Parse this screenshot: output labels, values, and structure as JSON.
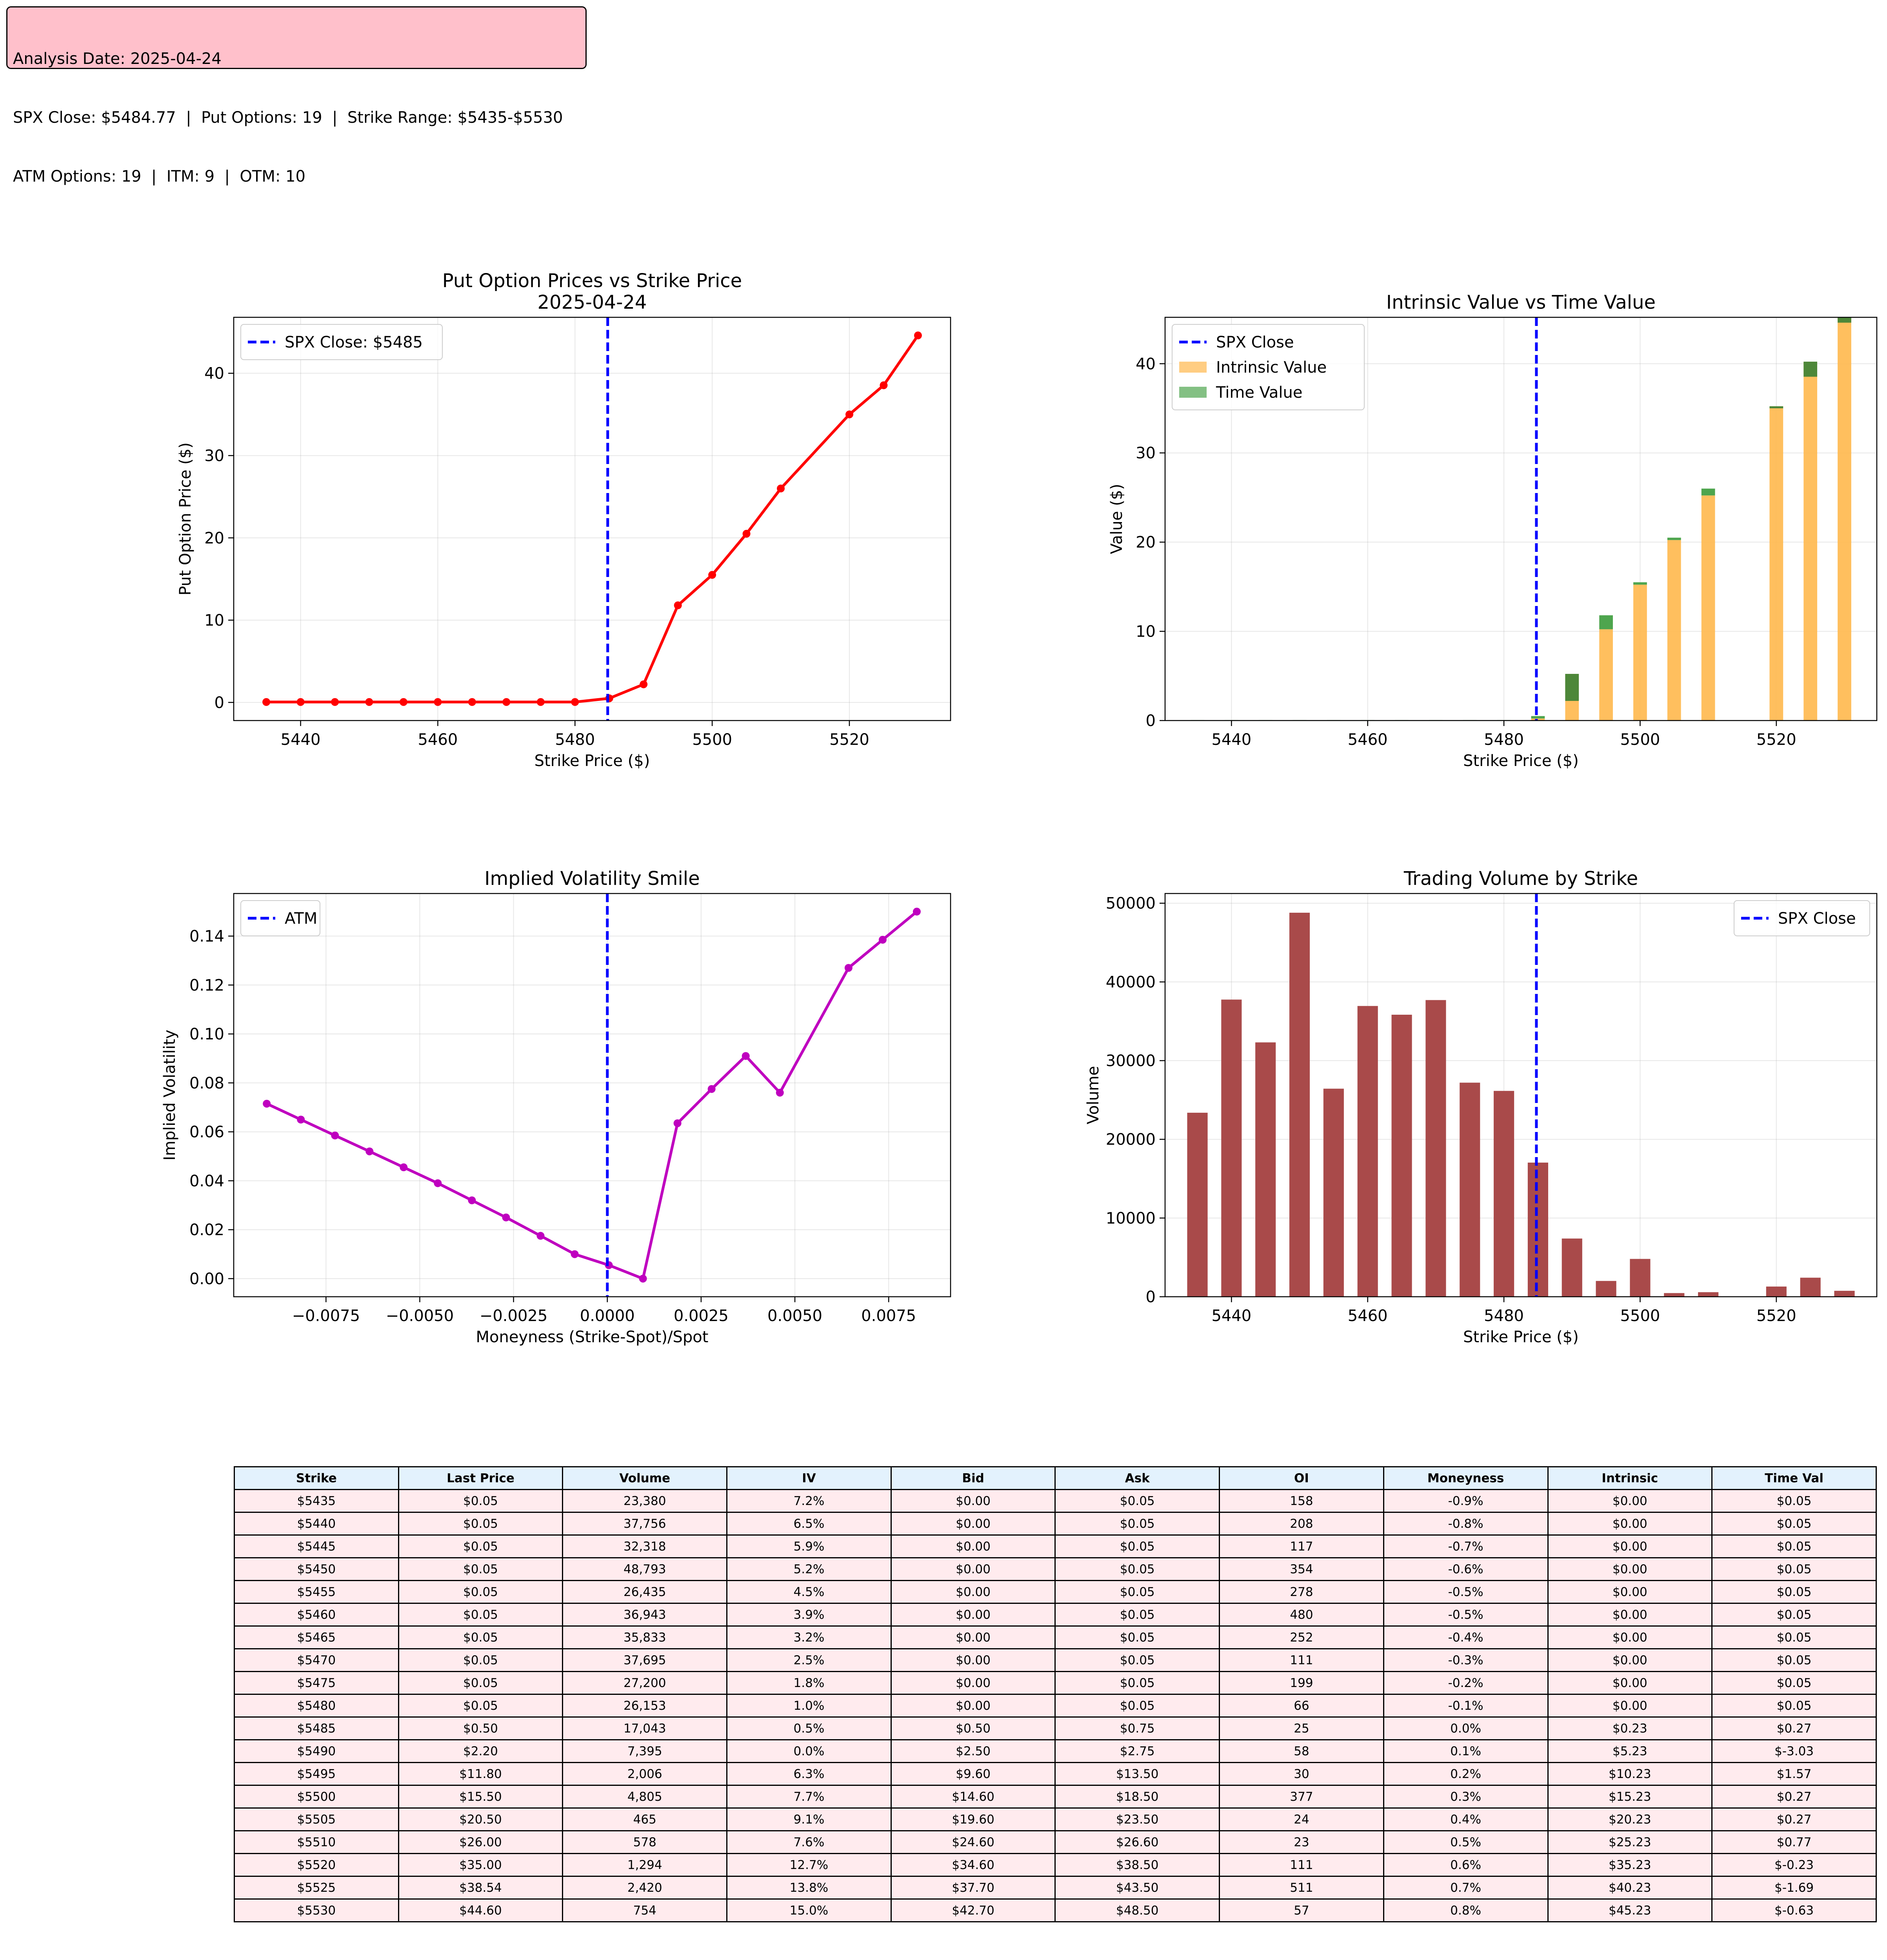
{
  "info": {
    "line1": "Analysis Date: 2025-04-24",
    "line2": "SPX Close: $5484.77  |  Put Options: 19  |  Strike Range: $5435-$5530",
    "line3": "ATM Options: 19  |  ITM: 9  |  OTM: 10"
  },
  "colors": {
    "put_line": "#ff0000",
    "iv_line": "#bf00bf",
    "spot_line": "#0000ff",
    "intrinsic": "#ffb84d",
    "time_value": "#4ea54e",
    "time_value_negative": "#2e7d32",
    "volume_bar": "#a94a4a",
    "table_header": "#e3f2fd",
    "table_row": "#ffebee",
    "info_box": "#ffc0cb"
  },
  "chart_data": [
    {
      "id": "put-prices",
      "type": "line",
      "title": "Put Option Prices vs Strike Price\n2025-04-24",
      "xlabel": "Strike Price ($)",
      "ylabel": "Put Option Price ($)",
      "xlim": [
        5430.25,
        5534.75
      ],
      "ylim": [
        -2.2,
        46.8
      ],
      "xticks": [
        5440,
        5460,
        5480,
        5500,
        5520
      ],
      "yticks": [
        0,
        10,
        20,
        30,
        40
      ],
      "grid": true,
      "legend_position": "upper-left",
      "vline": {
        "x": 5484.77,
        "label": "SPX Close: $5485"
      },
      "series": [
        {
          "x": [
            5435,
            5440,
            5445,
            5450,
            5455,
            5460,
            5465,
            5470,
            5475,
            5480,
            5485,
            5490,
            5495,
            5500,
            5505,
            5510,
            5520,
            5525,
            5530
          ],
          "y": [
            0.05,
            0.05,
            0.05,
            0.05,
            0.05,
            0.05,
            0.05,
            0.05,
            0.05,
            0.05,
            0.5,
            2.2,
            11.8,
            15.5,
            20.5,
            26.0,
            35.0,
            38.54,
            44.6
          ]
        }
      ]
    },
    {
      "id": "intrinsic-time",
      "type": "bar",
      "stacked": true,
      "title": "Intrinsic Value vs Time Value",
      "xlabel": "Strike Price ($)",
      "ylabel": "Value ($)",
      "xlim": [
        5430.25,
        5534.75
      ],
      "ylim": [
        0,
        45.2
      ],
      "xticks": [
        5440,
        5460,
        5480,
        5500,
        5520
      ],
      "yticks": [
        0,
        10,
        20,
        30,
        40
      ],
      "grid": true,
      "legend_position": "upper-left",
      "vline": {
        "x": 5484.77,
        "label": "SPX Close"
      },
      "categories": [
        5435,
        5440,
        5445,
        5450,
        5455,
        5460,
        5465,
        5470,
        5475,
        5480,
        5485,
        5490,
        5495,
        5500,
        5505,
        5510,
        5520,
        5525,
        5530
      ],
      "series": [
        {
          "name": "Intrinsic Value",
          "values": [
            0,
            0,
            0,
            0,
            0,
            0,
            0,
            0,
            0,
            0,
            0.23,
            5.23,
            10.23,
            15.23,
            20.23,
            25.23,
            35.23,
            40.23,
            45.23
          ]
        },
        {
          "name": "Time Value",
          "values": [
            0.05,
            0.05,
            0.05,
            0.05,
            0.05,
            0.05,
            0.05,
            0.05,
            0.05,
            0.05,
            0.27,
            -3.03,
            1.57,
            0.27,
            0.27,
            0.77,
            -0.23,
            -1.69,
            -0.63
          ]
        }
      ]
    },
    {
      "id": "iv-smile",
      "type": "line",
      "title": "Implied Volatility Smile",
      "xlabel": "Moneyness (Strike-Spot)/Spot",
      "ylabel": "Implied Volatility",
      "xlim": [
        -0.00996,
        0.00915
      ],
      "ylim": [
        -0.0074,
        0.1574
      ],
      "xticks": [
        -0.0075,
        -0.005,
        -0.0025,
        0.0,
        0.0025,
        0.005,
        0.0075
      ],
      "xtick_labels": [
        "−0.0075",
        "−0.0050",
        "−0.0025",
        "0.0000",
        "0.0025",
        "0.0050",
        "0.0075"
      ],
      "yticks": [
        0.0,
        0.02,
        0.04,
        0.06,
        0.08,
        0.1,
        0.12,
        0.14
      ],
      "ytick_labels": [
        "0.00",
        "0.02",
        "0.04",
        "0.06",
        "0.08",
        "0.10",
        "0.12",
        "0.14"
      ],
      "grid": true,
      "legend_position": "upper-left",
      "vline": {
        "x": 0.0,
        "label": "ATM"
      },
      "series": [
        {
          "x": [
            -0.00908,
            -0.00817,
            -0.00726,
            -0.00634,
            -0.00543,
            -0.00452,
            -0.00361,
            -0.0027,
            -0.00178,
            -0.00087,
            4e-05,
            0.00095,
            0.00187,
            0.00278,
            0.00369,
            0.0046,
            0.00643,
            0.00734,
            0.00825
          ],
          "y": [
            0.0715,
            0.065,
            0.0585,
            0.052,
            0.0455,
            0.039,
            0.032,
            0.025,
            0.0175,
            0.01,
            0.0055,
            0.0,
            0.0635,
            0.0775,
            0.091,
            0.076,
            0.127,
            0.1385,
            0.15
          ]
        }
      ]
    },
    {
      "id": "volume",
      "type": "bar",
      "title": "Trading Volume by Strike",
      "xlabel": "Strike Price ($)",
      "ylabel": "Volume",
      "xlim": [
        5430.25,
        5534.75
      ],
      "ylim": [
        0,
        51233
      ],
      "xticks": [
        5440,
        5460,
        5480,
        5500,
        5520
      ],
      "yticks": [
        0,
        10000,
        20000,
        30000,
        40000,
        50000
      ],
      "grid": true,
      "legend_position": "upper-right",
      "vline": {
        "x": 5484.77,
        "label": "SPX Close"
      },
      "categories": [
        5435,
        5440,
        5445,
        5450,
        5455,
        5460,
        5465,
        5470,
        5475,
        5480,
        5485,
        5490,
        5495,
        5500,
        5505,
        5510,
        5520,
        5525,
        5530
      ],
      "values": [
        23380,
        37756,
        32318,
        48793,
        26435,
        36943,
        35833,
        37695,
        27200,
        26153,
        17043,
        7395,
        2006,
        4805,
        465,
        578,
        1294,
        2420,
        754
      ]
    }
  ],
  "table": {
    "headers": [
      "Strike",
      "Last Price",
      "Volume",
      "IV",
      "Bid",
      "Ask",
      "OI",
      "Moneyness",
      "Intrinsic",
      "Time Val"
    ],
    "rows": [
      [
        "$5435",
        "$0.05",
        "23,380",
        "7.2%",
        "$0.00",
        "$0.05",
        "158",
        "-0.9%",
        "$0.00",
        "$0.05"
      ],
      [
        "$5440",
        "$0.05",
        "37,756",
        "6.5%",
        "$0.00",
        "$0.05",
        "208",
        "-0.8%",
        "$0.00",
        "$0.05"
      ],
      [
        "$5445",
        "$0.05",
        "32,318",
        "5.9%",
        "$0.00",
        "$0.05",
        "117",
        "-0.7%",
        "$0.00",
        "$0.05"
      ],
      [
        "$5450",
        "$0.05",
        "48,793",
        "5.2%",
        "$0.00",
        "$0.05",
        "354",
        "-0.6%",
        "$0.00",
        "$0.05"
      ],
      [
        "$5455",
        "$0.05",
        "26,435",
        "4.5%",
        "$0.00",
        "$0.05",
        "278",
        "-0.5%",
        "$0.00",
        "$0.05"
      ],
      [
        "$5460",
        "$0.05",
        "36,943",
        "3.9%",
        "$0.00",
        "$0.05",
        "480",
        "-0.5%",
        "$0.00",
        "$0.05"
      ],
      [
        "$5465",
        "$0.05",
        "35,833",
        "3.2%",
        "$0.00",
        "$0.05",
        "252",
        "-0.4%",
        "$0.00",
        "$0.05"
      ],
      [
        "$5470",
        "$0.05",
        "37,695",
        "2.5%",
        "$0.00",
        "$0.05",
        "111",
        "-0.3%",
        "$0.00",
        "$0.05"
      ],
      [
        "$5475",
        "$0.05",
        "27,200",
        "1.8%",
        "$0.00",
        "$0.05",
        "199",
        "-0.2%",
        "$0.00",
        "$0.05"
      ],
      [
        "$5480",
        "$0.05",
        "26,153",
        "1.0%",
        "$0.00",
        "$0.05",
        "66",
        "-0.1%",
        "$0.00",
        "$0.05"
      ],
      [
        "$5485",
        "$0.50",
        "17,043",
        "0.5%",
        "$0.50",
        "$0.75",
        "25",
        "0.0%",
        "$0.23",
        "$0.27"
      ],
      [
        "$5490",
        "$2.20",
        "7,395",
        "0.0%",
        "$2.50",
        "$2.75",
        "58",
        "0.1%",
        "$5.23",
        "$-3.03"
      ],
      [
        "$5495",
        "$11.80",
        "2,006",
        "6.3%",
        "$9.60",
        "$13.50",
        "30",
        "0.2%",
        "$10.23",
        "$1.57"
      ],
      [
        "$5500",
        "$15.50",
        "4,805",
        "7.7%",
        "$14.60",
        "$18.50",
        "377",
        "0.3%",
        "$15.23",
        "$0.27"
      ],
      [
        "$5505",
        "$20.50",
        "465",
        "9.1%",
        "$19.60",
        "$23.50",
        "24",
        "0.4%",
        "$20.23",
        "$0.27"
      ],
      [
        "$5510",
        "$26.00",
        "578",
        "7.6%",
        "$24.60",
        "$26.60",
        "23",
        "0.5%",
        "$25.23",
        "$0.77"
      ],
      [
        "$5520",
        "$35.00",
        "1,294",
        "12.7%",
        "$34.60",
        "$38.50",
        "111",
        "0.6%",
        "$35.23",
        "$-0.23"
      ],
      [
        "$5525",
        "$38.54",
        "2,420",
        "13.8%",
        "$37.70",
        "$43.50",
        "511",
        "0.7%",
        "$40.23",
        "$-1.69"
      ],
      [
        "$5530",
        "$44.60",
        "754",
        "15.0%",
        "$42.70",
        "$48.50",
        "57",
        "0.8%",
        "$45.23",
        "$-0.63"
      ]
    ]
  }
}
